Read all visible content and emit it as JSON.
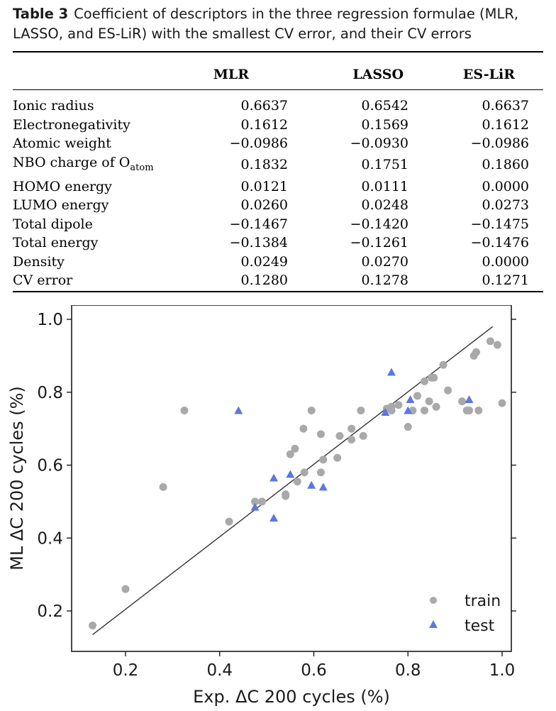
{
  "caption": {
    "label": "Table 3",
    "text": "Coefficient of descriptors in the three regression formulae (MLR, LASSO, and ES-LiR) with the smallest CV error, and their CV errors"
  },
  "table": {
    "columns": [
      "MLR",
      "LASSO",
      "ES-LiR"
    ],
    "rows": [
      {
        "name": "Ionic radius",
        "mlr": "0.6637",
        "lasso": "0.6542",
        "esl": "0.6637"
      },
      {
        "name": "Electronegativity",
        "mlr": "0.1612",
        "lasso": "0.1569",
        "esl": "0.1612"
      },
      {
        "name": "Atomic weight",
        "mlr": "−0.0986",
        "lasso": "−0.0930",
        "esl": "−0.0986"
      },
      {
        "name": "NBO charge of O",
        "sub": "atom",
        "mlr": "0.1832",
        "lasso": "0.1751",
        "esl": "0.1860"
      },
      {
        "name": "HOMO energy",
        "mlr": "0.0121",
        "lasso": "0.0111",
        "esl": "0.0000"
      },
      {
        "name": "LUMO energy",
        "mlr": "0.0260",
        "lasso": "0.0248",
        "esl": "0.0273"
      },
      {
        "name": "Total dipole",
        "mlr": "−0.1467",
        "lasso": "−0.1420",
        "esl": "−0.1475"
      },
      {
        "name": "Total energy",
        "mlr": "−0.1384",
        "lasso": "−0.1261",
        "esl": "−0.1476"
      },
      {
        "name": "Density",
        "mlr": "0.0249",
        "lasso": "0.0270",
        "esl": "0.0000"
      },
      {
        "name": "CV error",
        "mlr": "0.1280",
        "lasso": "0.1278",
        "esl": "0.1271"
      }
    ]
  },
  "chart_data": {
    "type": "scatter",
    "xlabel": "Exp. ΔC 200 cycles (%)",
    "ylabel": "ML ΔC 200 cycles (%)",
    "xlim": [
      0.09,
      1.03
    ],
    "ylim": [
      0.1,
      1.03
    ],
    "xticks": [
      "0.2",
      "0.4",
      "0.6",
      "0.8",
      "1.0"
    ],
    "yticks": [
      "0.2",
      "0.4",
      "0.6",
      "0.8",
      "1.0"
    ],
    "legend_position": "bottom-right",
    "fit_line": {
      "x": [
        0.13,
        0.98
      ],
      "y": [
        0.135,
        0.98
      ]
    },
    "series": [
      {
        "name": "train",
        "marker": "circle",
        "color": "#a9a9a9",
        "points": [
          [
            0.13,
            0.16
          ],
          [
            0.2,
            0.26
          ],
          [
            0.28,
            0.54
          ],
          [
            0.325,
            0.75
          ],
          [
            0.42,
            0.445
          ],
          [
            0.475,
            0.5
          ],
          [
            0.49,
            0.5
          ],
          [
            0.54,
            0.52
          ],
          [
            0.54,
            0.515
          ],
          [
            0.55,
            0.63
          ],
          [
            0.56,
            0.645
          ],
          [
            0.565,
            0.555
          ],
          [
            0.58,
            0.58
          ],
          [
            0.578,
            0.7
          ],
          [
            0.595,
            0.75
          ],
          [
            0.615,
            0.685
          ],
          [
            0.615,
            0.58
          ],
          [
            0.62,
            0.615
          ],
          [
            0.65,
            0.62
          ],
          [
            0.655,
            0.68
          ],
          [
            0.68,
            0.7
          ],
          [
            0.68,
            0.67
          ],
          [
            0.7,
            0.75
          ],
          [
            0.705,
            0.68
          ],
          [
            0.755,
            0.755
          ],
          [
            0.765,
            0.76
          ],
          [
            0.765,
            0.75
          ],
          [
            0.78,
            0.765
          ],
          [
            0.8,
            0.705
          ],
          [
            0.81,
            0.75
          ],
          [
            0.82,
            0.79
          ],
          [
            0.835,
            0.83
          ],
          [
            0.835,
            0.75
          ],
          [
            0.845,
            0.775
          ],
          [
            0.85,
            0.84
          ],
          [
            0.855,
            0.84
          ],
          [
            0.86,
            0.76
          ],
          [
            0.875,
            0.875
          ],
          [
            0.885,
            0.805
          ],
          [
            0.915,
            0.775
          ],
          [
            0.925,
            0.75
          ],
          [
            0.93,
            0.75
          ],
          [
            0.94,
            0.9
          ],
          [
            0.945,
            0.91
          ],
          [
            0.95,
            0.75
          ],
          [
            0.975,
            0.94
          ],
          [
            0.99,
            0.93
          ],
          [
            1.0,
            0.77
          ]
        ]
      },
      {
        "name": "test",
        "marker": "triangle",
        "color": "#5a78e0",
        "points": [
          [
            0.44,
            0.75
          ],
          [
            0.475,
            0.485
          ],
          [
            0.515,
            0.565
          ],
          [
            0.515,
            0.455
          ],
          [
            0.55,
            0.575
          ],
          [
            0.595,
            0.545
          ],
          [
            0.62,
            0.54
          ],
          [
            0.752,
            0.745
          ],
          [
            0.765,
            0.855
          ],
          [
            0.8,
            0.75
          ],
          [
            0.805,
            0.78
          ],
          [
            0.93,
            0.78
          ]
        ]
      }
    ]
  }
}
